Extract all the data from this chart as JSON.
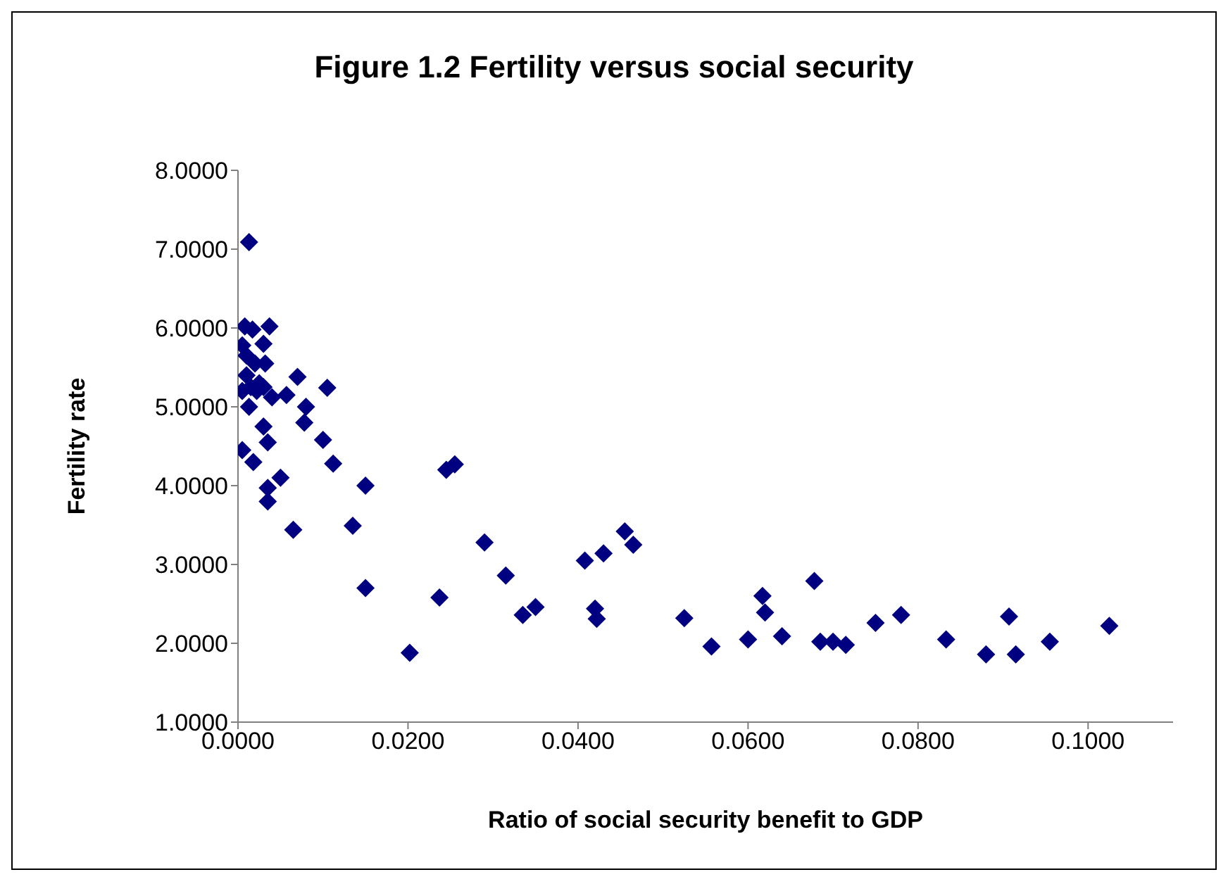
{
  "chart_data": {
    "type": "scatter",
    "title": "Figure 1.2 Fertility versus social security",
    "xlabel": "Ratio of social security benefit to GDP",
    "ylabel": "Fertility rate",
    "marker": "diamond",
    "grid": false,
    "legend": false,
    "x": [
      0.0013,
      0.0008,
      0.0017,
      0.0037,
      0.0005,
      0.003,
      0.001,
      0.002,
      0.0032,
      0.001,
      0.0025,
      0.0015,
      0.0005,
      0.0022,
      0.004,
      0.003,
      0.0013,
      0.007,
      0.0105,
      0.0057,
      0.008,
      0.0078,
      0.003,
      0.0035,
      0.01,
      0.0005,
      0.0018,
      0.0112,
      0.015,
      0.0035,
      0.005,
      0.0035,
      0.0065,
      0.0135,
      0.015,
      0.0202,
      0.0237,
      0.0245,
      0.0255,
      0.029,
      0.0315,
      0.0335,
      0.035,
      0.0408,
      0.042,
      0.0422,
      0.043,
      0.0455,
      0.0465,
      0.0525,
      0.0557,
      0.06,
      0.0617,
      0.062,
      0.064,
      0.0678,
      0.0685,
      0.07,
      0.0715,
      0.075,
      0.078,
      0.0833,
      0.088,
      0.0907,
      0.0915,
      0.0955,
      0.1025
    ],
    "series": [
      {
        "color": "#000080",
        "values": [
          7.09,
          6.02,
          5.98,
          6.02,
          5.78,
          5.8,
          5.65,
          5.55,
          5.55,
          5.4,
          5.3,
          5.25,
          5.2,
          5.2,
          5.12,
          5.25,
          5.0,
          5.38,
          5.24,
          5.15,
          5.0,
          4.8,
          4.75,
          4.55,
          4.58,
          4.45,
          4.3,
          4.28,
          4.0,
          3.97,
          4.1,
          3.8,
          3.44,
          3.49,
          2.7,
          1.88,
          2.58,
          4.2,
          4.27,
          3.28,
          2.86,
          2.36,
          2.46,
          3.05,
          2.44,
          2.31,
          3.14,
          3.42,
          3.25,
          2.32,
          1.96,
          2.05,
          2.6,
          2.39,
          2.09,
          2.79,
          2.02,
          2.02,
          1.98,
          2.26,
          2.36,
          2.05,
          1.86,
          2.34,
          1.86,
          2.02,
          2.22
        ]
      }
    ],
    "xlim": [
      0,
      0.11
    ],
    "xticks": [
      {
        "value": 0,
        "label": "0.0000"
      },
      {
        "value": 0.02,
        "label": "0.0200"
      },
      {
        "value": 0.04,
        "label": "0.0400"
      },
      {
        "value": 0.06,
        "label": "0.0600"
      },
      {
        "value": 0.08,
        "label": "0.0800"
      },
      {
        "value": 0.1,
        "label": "0.1000"
      }
    ],
    "ylim": [
      1,
      8
    ],
    "yticks": [
      {
        "value": 1,
        "label": "1.0000"
      },
      {
        "value": 2,
        "label": "2.0000"
      },
      {
        "value": 3,
        "label": "3.0000"
      },
      {
        "value": 4,
        "label": "4.0000"
      },
      {
        "value": 5,
        "label": "5.0000"
      },
      {
        "value": 6,
        "label": "6.0000"
      },
      {
        "value": 7,
        "label": "7.0000"
      },
      {
        "value": 8,
        "label": "8.0000"
      }
    ]
  }
}
